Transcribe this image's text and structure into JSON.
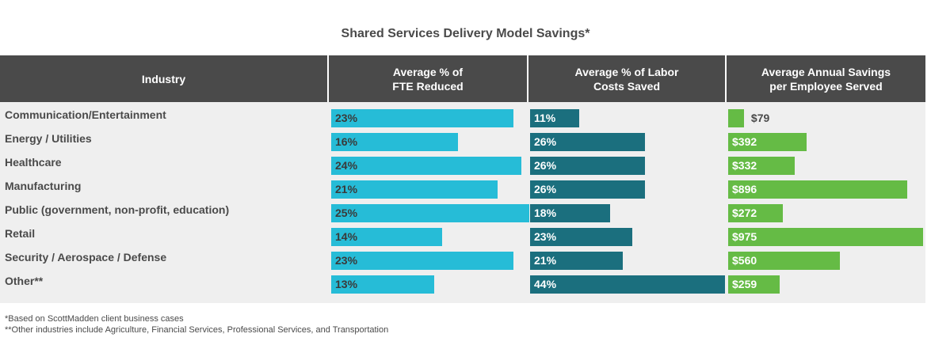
{
  "title": "Shared Services Delivery Model Savings*",
  "headers": {
    "industry": "Industry",
    "fte": "Average % of\nFTE Reduced",
    "labor": "Average % of Labor\nCosts Saved",
    "savings": "Average Annual Savings\nper Employee Served"
  },
  "colors": {
    "header_bg": "#4a4a4a",
    "panel_bg": "#efefef",
    "fte": "#26bcd7",
    "labor": "#1b6f7e",
    "savings": "#65bb45",
    "text": "#4a4a4a"
  },
  "footnotes": [
    "*Based on ScottMadden client business cases",
    "**Other industries include Agriculture, Financial Services, Professional Services, and Transportation"
  ],
  "chart_data": {
    "type": "bar",
    "categories": [
      "Communication/Entertainment",
      "Energy / Utilities",
      "Healthcare",
      "Manufacturing",
      "Public (government, non-profit, education)",
      "Retail",
      "Security / Aerospace / Defense",
      "Other**"
    ],
    "series": [
      {
        "name": "Average % of FTE Reduced",
        "values": [
          23,
          16,
          24,
          21,
          25,
          14,
          23,
          13
        ],
        "labels": [
          "23%",
          "16%",
          "24%",
          "21%",
          "25%",
          "14%",
          "23%",
          "13%"
        ]
      },
      {
        "name": "Average % of Labor Costs Saved",
        "values": [
          11,
          26,
          26,
          26,
          18,
          23,
          21,
          44
        ],
        "labels": [
          "11%",
          "26%",
          "26%",
          "26%",
          "18%",
          "23%",
          "21%",
          "44%"
        ]
      },
      {
        "name": "Average Annual Savings per Employee Served",
        "values": [
          79,
          392,
          332,
          896,
          272,
          975,
          560,
          259
        ],
        "labels": [
          "$79",
          "$392",
          "$332",
          "$896",
          "$272",
          "$975",
          "$560",
          "$259"
        ]
      }
    ]
  }
}
